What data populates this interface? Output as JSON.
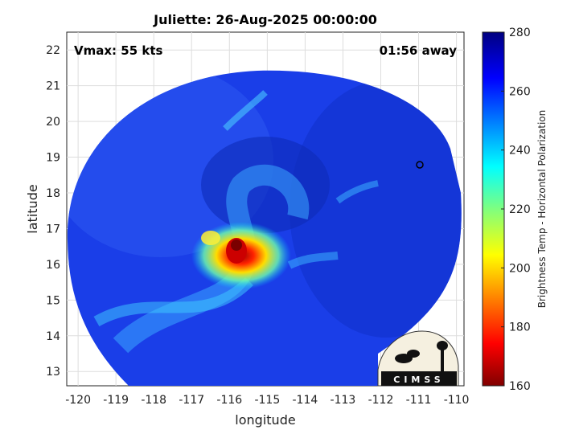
{
  "title": "Juliette: 26-Aug-2025 00:00:00",
  "annotations": {
    "vmax": "Vmax: 55 kts",
    "time_away": "01:56 away"
  },
  "axes": {
    "xlabel": "longitude",
    "ylabel": "latitude",
    "xlim": [
      -120.3,
      -109.8
    ],
    "ylim": [
      12.6,
      22.5
    ],
    "xticks": [
      "-120",
      "-119",
      "-118",
      "-117",
      "-116",
      "-115",
      "-114",
      "-113",
      "-112",
      "-111",
      "-110"
    ],
    "yticks": [
      "13",
      "14",
      "15",
      "16",
      "17",
      "18",
      "19",
      "20",
      "21",
      "22"
    ],
    "grid": true
  },
  "colorbar": {
    "label": "Brightness Temp - Horizontal Polarization",
    "ticks": [
      "160",
      "180",
      "200",
      "220",
      "240",
      "260",
      "280"
    ],
    "range": [
      160,
      280
    ]
  },
  "logo": {
    "text": "CIMSS"
  },
  "chart_data": {
    "type": "heatmap",
    "description_fields": [
      "storm center",
      "swath"
    ],
    "storm_center": {
      "lon": -115.9,
      "lat": 16.4,
      "min_tb": 165
    },
    "swath_center": {
      "lon": -115.6,
      "lat": 17.5
    },
    "background_tb": 262
  }
}
